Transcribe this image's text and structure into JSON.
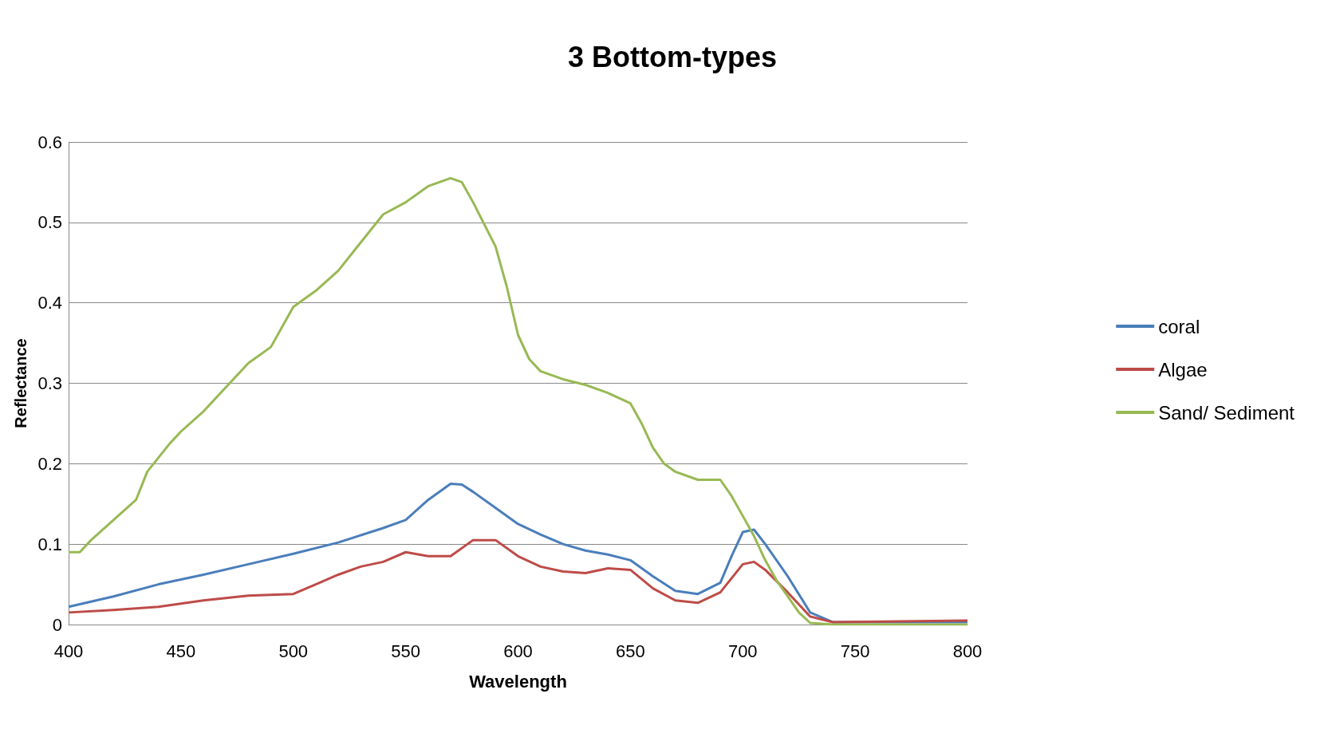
{
  "chart_data": {
    "type": "line",
    "title": "3 Bottom-types",
    "xlabel": "Wavelength",
    "ylabel": "Reflectance",
    "xlim": [
      400,
      800
    ],
    "xticks": [
      400,
      450,
      500,
      550,
      600,
      650,
      700,
      750,
      800
    ],
    "ylim": [
      0,
      0.6
    ],
    "yticks": [
      0,
      0.1,
      0.2,
      0.3,
      0.4,
      0.5,
      0.6
    ],
    "grid": "y",
    "legend": "right",
    "marker": "none",
    "line_style": "solid",
    "series": [
      {
        "name": "coral",
        "color": "#4a7ebb",
        "x": [
          400,
          420,
          440,
          460,
          480,
          500,
          520,
          540,
          550,
          560,
          570,
          575,
          580,
          590,
          600,
          610,
          620,
          630,
          640,
          650,
          660,
          670,
          680,
          690,
          695,
          700,
          705,
          710,
          720,
          730,
          740,
          800
        ],
        "values": [
          0.022,
          0.035,
          0.05,
          0.062,
          0.075,
          0.088,
          0.102,
          0.12,
          0.13,
          0.155,
          0.175,
          0.174,
          0.165,
          0.145,
          0.125,
          0.112,
          0.1,
          0.092,
          0.087,
          0.08,
          0.06,
          0.042,
          0.038,
          0.052,
          0.085,
          0.115,
          0.118,
          0.1,
          0.06,
          0.015,
          0.003,
          0.003
        ]
      },
      {
        "name": "Algae",
        "color": "#be4b48",
        "x": [
          400,
          420,
          440,
          460,
          480,
          500,
          510,
          520,
          530,
          540,
          550,
          560,
          570,
          580,
          590,
          600,
          610,
          620,
          630,
          640,
          650,
          660,
          670,
          680,
          690,
          700,
          705,
          710,
          720,
          730,
          740,
          800
        ],
        "values": [
          0.015,
          0.018,
          0.022,
          0.03,
          0.036,
          0.038,
          0.05,
          0.062,
          0.072,
          0.078,
          0.09,
          0.085,
          0.085,
          0.105,
          0.105,
          0.085,
          0.072,
          0.066,
          0.064,
          0.07,
          0.068,
          0.045,
          0.03,
          0.027,
          0.04,
          0.075,
          0.078,
          0.068,
          0.04,
          0.01,
          0.003,
          0.005
        ]
      },
      {
        "name": "Sand/ Sediment",
        "color": "#98b954",
        "x": [
          400,
          405,
          410,
          420,
          430,
          435,
          445,
          450,
          460,
          470,
          480,
          490,
          500,
          510,
          520,
          530,
          540,
          550,
          560,
          570,
          575,
          580,
          590,
          595,
          600,
          605,
          610,
          620,
          630,
          640,
          650,
          655,
          660,
          665,
          670,
          680,
          690,
          695,
          700,
          705,
          710,
          715,
          720,
          725,
          730,
          740,
          800
        ],
        "values": [
          0.09,
          0.09,
          0.105,
          0.13,
          0.155,
          0.19,
          0.225,
          0.24,
          0.265,
          0.295,
          0.325,
          0.345,
          0.395,
          0.415,
          0.44,
          0.475,
          0.51,
          0.525,
          0.545,
          0.555,
          0.55,
          0.525,
          0.47,
          0.42,
          0.36,
          0.33,
          0.315,
          0.305,
          0.298,
          0.288,
          0.275,
          0.25,
          0.22,
          0.2,
          0.19,
          0.18,
          0.18,
          0.16,
          0.135,
          0.11,
          0.08,
          0.055,
          0.035,
          0.015,
          0.002,
          0,
          0
        ]
      }
    ]
  }
}
